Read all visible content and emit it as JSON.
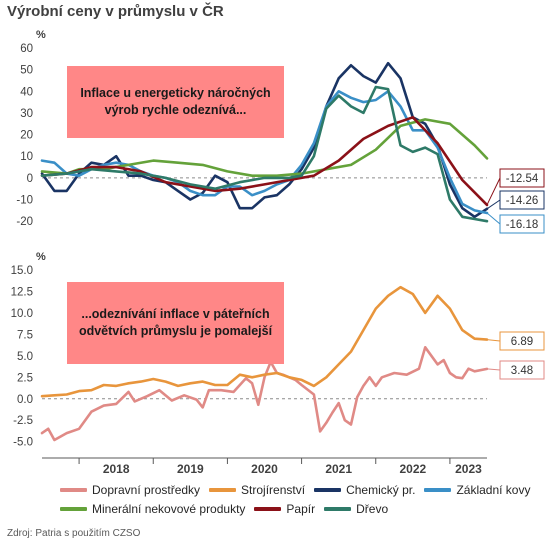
{
  "title": "Výrobní ceny v průmyslu v ČR",
  "source": "Zdroj: Patria s použitím CZSO",
  "annotations": {
    "top": "Inflace u energeticky náročných výrob rychle odeznívá...",
    "bottom": "...odeznívání inflace v páteřních odvětvích průmyslu je pomalejší"
  },
  "colors": {
    "dopravni": "#e08a86",
    "strojirenstvi": "#e8953c",
    "chemicky": "#1a3464",
    "zakladni": "#3a8fc7",
    "mineralni": "#64a23a",
    "papir": "#8b1118",
    "drevo": "#2e7a68"
  },
  "chart_data": [
    {
      "type": "line",
      "ylabel": "%",
      "ylim": [
        -25,
        60
      ],
      "yticks": [
        -20,
        -10,
        0,
        10,
        20,
        30,
        40,
        50,
        60
      ],
      "x_start": "2017-07",
      "x_end": "2023-07",
      "x_ticklabels": [
        "2018",
        "2019",
        "2020",
        "2021",
        "2022",
        "2023"
      ],
      "series": [
        {
          "name": "Chemický pr.",
          "color_key": "chemicky",
          "end_label": "-14.26",
          "points": [
            [
              "2017-07",
              2
            ],
            [
              "2017-09",
              -6
            ],
            [
              "2017-11",
              -6
            ],
            [
              "2018-01",
              2
            ],
            [
              "2018-03",
              7
            ],
            [
              "2018-05",
              6
            ],
            [
              "2018-07",
              10
            ],
            [
              "2018-09",
              1
            ],
            [
              "2018-11",
              1
            ],
            [
              "2019-01",
              -1
            ],
            [
              "2019-03",
              -2
            ],
            [
              "2019-05",
              -6
            ],
            [
              "2019-07",
              -10
            ],
            [
              "2019-09",
              -7
            ],
            [
              "2019-11",
              1
            ],
            [
              "2020-01",
              -2
            ],
            [
              "2020-03",
              -14
            ],
            [
              "2020-05",
              -14
            ],
            [
              "2020-07",
              -9
            ],
            [
              "2020-09",
              -8
            ],
            [
              "2020-11",
              -3
            ],
            [
              "2021-01",
              4
            ],
            [
              "2021-03",
              14
            ],
            [
              "2021-05",
              33
            ],
            [
              "2021-07",
              46
            ],
            [
              "2021-09",
              52
            ],
            [
              "2021-11",
              47
            ],
            [
              "2022-01",
              44
            ],
            [
              "2022-03",
              53
            ],
            [
              "2022-05",
              46
            ],
            [
              "2022-07",
              28
            ],
            [
              "2022-09",
              25
            ],
            [
              "2022-11",
              15
            ],
            [
              "2023-01",
              -3
            ],
            [
              "2023-03",
              -14
            ],
            [
              "2023-05",
              -18
            ],
            [
              "2023-07",
              -14.3
            ]
          ]
        },
        {
          "name": "Základní kovy",
          "color_key": "zakladni",
          "end_label": "-16.18",
          "points": [
            [
              "2017-07",
              8
            ],
            [
              "2017-09",
              7
            ],
            [
              "2017-11",
              2
            ],
            [
              "2018-01",
              1
            ],
            [
              "2018-03",
              4
            ],
            [
              "2018-05",
              6
            ],
            [
              "2018-07",
              7
            ],
            [
              "2018-09",
              6
            ],
            [
              "2018-11",
              3
            ],
            [
              "2019-01",
              1
            ],
            [
              "2019-03",
              0
            ],
            [
              "2019-05",
              -2
            ],
            [
              "2019-07",
              -6
            ],
            [
              "2019-09",
              -8
            ],
            [
              "2019-11",
              -8
            ],
            [
              "2020-01",
              -4
            ],
            [
              "2020-03",
              -4
            ],
            [
              "2020-05",
              -8
            ],
            [
              "2020-07",
              -6
            ],
            [
              "2020-09",
              -3
            ],
            [
              "2020-11",
              -1
            ],
            [
              "2021-01",
              6
            ],
            [
              "2021-03",
              16
            ],
            [
              "2021-05",
              33
            ],
            [
              "2021-07",
              40
            ],
            [
              "2021-09",
              37
            ],
            [
              "2021-11",
              35
            ],
            [
              "2022-01",
              36
            ],
            [
              "2022-03",
              40
            ],
            [
              "2022-05",
              33
            ],
            [
              "2022-07",
              22
            ],
            [
              "2022-09",
              22
            ],
            [
              "2022-11",
              14
            ],
            [
              "2023-01",
              0
            ],
            [
              "2023-03",
              -12
            ],
            [
              "2023-05",
              -15
            ],
            [
              "2023-07",
              -16.2
            ]
          ]
        },
        {
          "name": "Minerální nekovové produkty",
          "color_key": "mineralni",
          "points": [
            [
              "2017-07",
              3
            ],
            [
              "2017-11",
              2
            ],
            [
              "2018-01",
              4
            ],
            [
              "2018-05",
              4
            ],
            [
              "2018-09",
              6
            ],
            [
              "2019-01",
              8
            ],
            [
              "2019-05",
              7
            ],
            [
              "2019-09",
              6
            ],
            [
              "2020-01",
              3
            ],
            [
              "2020-05",
              1
            ],
            [
              "2020-09",
              1
            ],
            [
              "2021-01",
              2
            ],
            [
              "2021-05",
              4
            ],
            [
              "2021-09",
              6
            ],
            [
              "2022-01",
              13
            ],
            [
              "2022-05",
              24
            ],
            [
              "2022-09",
              27
            ],
            [
              "2023-01",
              25
            ],
            [
              "2023-05",
              15
            ],
            [
              "2023-07",
              9
            ]
          ]
        },
        {
          "name": "Papír",
          "color_key": "papir",
          "end_label": "-12.54",
          "points": [
            [
              "2017-07",
              1
            ],
            [
              "2017-11",
              2
            ],
            [
              "2018-03",
              5
            ],
            [
              "2018-07",
              5
            ],
            [
              "2018-11",
              3
            ],
            [
              "2019-03",
              -2
            ],
            [
              "2019-07",
              -4
            ],
            [
              "2019-11",
              -6
            ],
            [
              "2020-03",
              -5
            ],
            [
              "2020-07",
              -3
            ],
            [
              "2020-11",
              -1
            ],
            [
              "2021-03",
              1
            ],
            [
              "2021-07",
              8
            ],
            [
              "2021-11",
              18
            ],
            [
              "2022-03",
              24
            ],
            [
              "2022-07",
              28
            ],
            [
              "2022-11",
              16
            ],
            [
              "2023-03",
              -1
            ],
            [
              "2023-07",
              -12.5
            ]
          ]
        },
        {
          "name": "Dřevo",
          "color_key": "drevo",
          "points": [
            [
              "2017-07",
              1
            ],
            [
              "2017-11",
              2
            ],
            [
              "2018-03",
              4
            ],
            [
              "2018-07",
              3
            ],
            [
              "2018-11",
              2
            ],
            [
              "2019-03",
              0
            ],
            [
              "2019-07",
              -3
            ],
            [
              "2019-11",
              -5
            ],
            [
              "2020-03",
              -2
            ],
            [
              "2020-07",
              0
            ],
            [
              "2020-11",
              0
            ],
            [
              "2021-01",
              1
            ],
            [
              "2021-03",
              10
            ],
            [
              "2021-05",
              32
            ],
            [
              "2021-07",
              38
            ],
            [
              "2021-09",
              33
            ],
            [
              "2021-11",
              30
            ],
            [
              "2022-01",
              42
            ],
            [
              "2022-03",
              41
            ],
            [
              "2022-05",
              15
            ],
            [
              "2022-07",
              12
            ],
            [
              "2022-09",
              14
            ],
            [
              "2022-11",
              11
            ],
            [
              "2023-01",
              -10
            ],
            [
              "2023-03",
              -18
            ],
            [
              "2023-05",
              -19
            ],
            [
              "2023-07",
              -20
            ]
          ]
        }
      ]
    },
    {
      "type": "line",
      "ylabel": "%",
      "ylim": [
        -5.5,
        15
      ],
      "yticks": [
        -5,
        -2.5,
        0,
        2.5,
        5,
        7.5,
        10,
        12.5,
        15
      ],
      "ytick_labels": [
        "-5.0",
        "-2.5",
        "0.0",
        "2.5",
        "5.0",
        "7.5",
        "10.0",
        "12.5",
        "15.0"
      ],
      "x_start": "2017-07",
      "x_end": "2023-07",
      "x_ticklabels": [
        "2018",
        "2019",
        "2020",
        "2021",
        "2022",
        "2023"
      ],
      "series": [
        {
          "name": "Dopravní prostředky",
          "color_key": "dopravni",
          "end_label": "3.48",
          "points": [
            [
              "2017-07",
              -4
            ],
            [
              "2017-08",
              -3.5
            ],
            [
              "2017-09",
              -4.8
            ],
            [
              "2017-11",
              -4
            ],
            [
              "2018-01",
              -3.5
            ],
            [
              "2018-03",
              -1.5
            ],
            [
              "2018-05",
              -0.8
            ],
            [
              "2018-07",
              -0.6
            ],
            [
              "2018-09",
              0.8
            ],
            [
              "2018-10",
              -0.3
            ],
            [
              "2018-12",
              0.3
            ],
            [
              "2019-02",
              1
            ],
            [
              "2019-04",
              -0.2
            ],
            [
              "2019-06",
              0.4
            ],
            [
              "2019-08",
              -0.1
            ],
            [
              "2019-09",
              -1
            ],
            [
              "2019-10",
              1
            ],
            [
              "2019-12",
              1
            ],
            [
              "2020-02",
              0.8
            ],
            [
              "2020-04",
              2.4
            ],
            [
              "2020-05",
              1.8
            ],
            [
              "2020-06",
              -0.7
            ],
            [
              "2020-07",
              2.5
            ],
            [
              "2020-08",
              4.3
            ],
            [
              "2020-09",
              3
            ],
            [
              "2020-10",
              2.8
            ],
            [
              "2020-12",
              2.2
            ],
            [
              "2021-01",
              1.6
            ],
            [
              "2021-03",
              0.5
            ],
            [
              "2021-04",
              -3.8
            ],
            [
              "2021-05",
              -2.8
            ],
            [
              "2021-06",
              -1.6
            ],
            [
              "2021-07",
              -0.5
            ],
            [
              "2021-08",
              -2.5
            ],
            [
              "2021-09",
              -3
            ],
            [
              "2021-10",
              0.2
            ],
            [
              "2021-11",
              1.5
            ],
            [
              "2021-12",
              2.5
            ],
            [
              "2022-01",
              1.5
            ],
            [
              "2022-02",
              2.5
            ],
            [
              "2022-04",
              3
            ],
            [
              "2022-06",
              2.8
            ],
            [
              "2022-08",
              3.5
            ],
            [
              "2022-09",
              6
            ],
            [
              "2022-11",
              4
            ],
            [
              "2022-12",
              4.5
            ],
            [
              "2023-01",
              3
            ],
            [
              "2023-02",
              2.5
            ],
            [
              "2023-03",
              2.4
            ],
            [
              "2023-04",
              3.5
            ],
            [
              "2023-05",
              3.2
            ],
            [
              "2023-07",
              3.48
            ]
          ]
        },
        {
          "name": "Strojírenství",
          "color_key": "strojirenstvi",
          "end_label": "6.89",
          "points": [
            [
              "2017-07",
              0.3
            ],
            [
              "2017-09",
              0.4
            ],
            [
              "2017-11",
              0.5
            ],
            [
              "2018-01",
              0.9
            ],
            [
              "2018-03",
              1
            ],
            [
              "2018-05",
              1.6
            ],
            [
              "2018-07",
              1.5
            ],
            [
              "2018-09",
              1.8
            ],
            [
              "2018-11",
              2
            ],
            [
              "2019-01",
              2.3
            ],
            [
              "2019-03",
              2
            ],
            [
              "2019-05",
              1.5
            ],
            [
              "2019-07",
              1.8
            ],
            [
              "2019-09",
              2
            ],
            [
              "2019-11",
              1.6
            ],
            [
              "2020-01",
              1.6
            ],
            [
              "2020-03",
              2.8
            ],
            [
              "2020-05",
              2.5
            ],
            [
              "2020-07",
              2.8
            ],
            [
              "2020-09",
              3
            ],
            [
              "2020-11",
              2.5
            ],
            [
              "2021-01",
              2.2
            ],
            [
              "2021-03",
              1.5
            ],
            [
              "2021-05",
              2.5
            ],
            [
              "2021-07",
              4
            ],
            [
              "2021-09",
              5.5
            ],
            [
              "2021-11",
              8
            ],
            [
              "2022-01",
              10.5
            ],
            [
              "2022-03",
              12
            ],
            [
              "2022-05",
              13
            ],
            [
              "2022-07",
              12.2
            ],
            [
              "2022-09",
              10
            ],
            [
              "2022-11",
              12
            ],
            [
              "2023-01",
              10.5
            ],
            [
              "2023-03",
              8
            ],
            [
              "2023-05",
              7
            ],
            [
              "2023-07",
              6.89
            ]
          ]
        }
      ]
    }
  ]
}
